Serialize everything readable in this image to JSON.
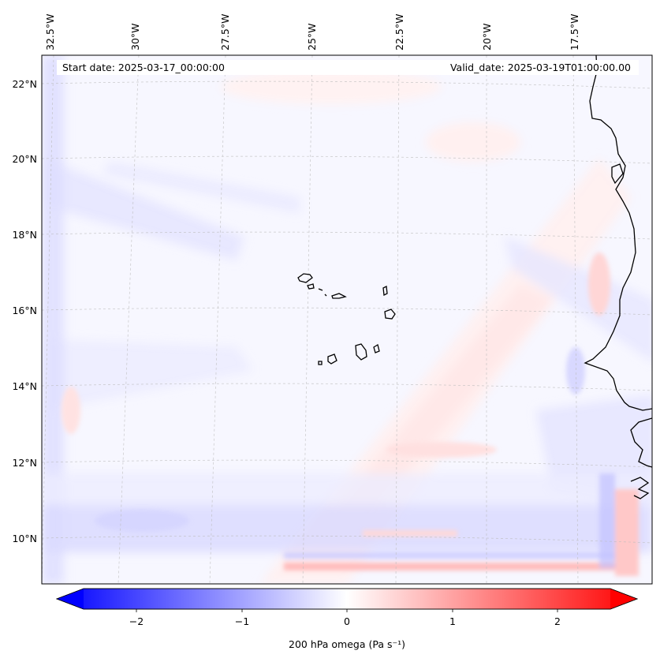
{
  "header": {
    "start_date": "Start date: 2025-03-17_00:00:00",
    "valid_date": "Valid_date: 2025-03-19T01:00:00.00"
  },
  "map": {
    "longitude_labels": [
      "32.5°W",
      "30°W",
      "27.5°W",
      "25°W",
      "22.5°W",
      "20°W",
      "17.5°W"
    ],
    "latitude_labels": [
      "22°N",
      "20°N",
      "18°N",
      "16°N",
      "14°N",
      "12°N",
      "10°N"
    ],
    "field": "200 hPa omega",
    "gridlines": true
  },
  "colorbar": {
    "label": "200 hPa omega (Pa s⁻¹)",
    "ticks": [
      "−2",
      "−1",
      "0",
      "1",
      "2"
    ],
    "range": [
      -2.5,
      2.5
    ],
    "colors": {
      "min": "#0000ff",
      "mid": "#ffffff",
      "max": "#ff0000"
    },
    "extend": "both"
  }
}
